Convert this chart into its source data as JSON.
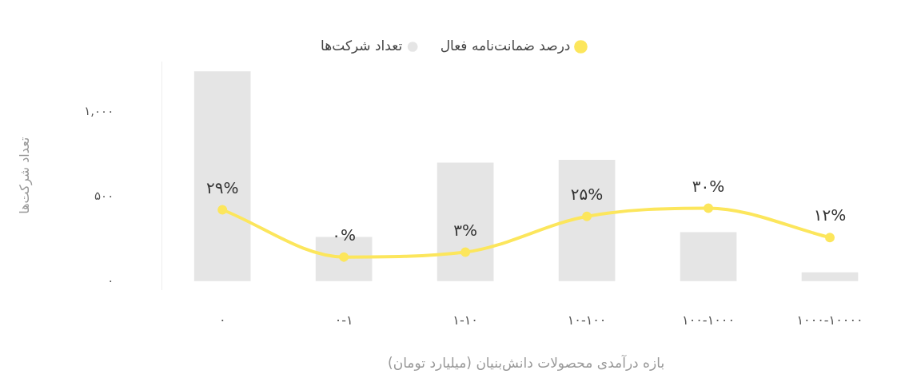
{
  "chart_data": {
    "type": "bar",
    "categories": [
      "۰",
      "۰-۱",
      "۱-۱۰",
      "۱۰-۱۰۰",
      "۱۰۰-۱۰۰۰",
      "۱۰۰۰-۱۰۰۰۰"
    ],
    "series": [
      {
        "name": "تعداد شرکت‌ها",
        "color": "#e5e5e5",
        "values": [
          1242,
          262,
          702,
          718,
          290,
          52
        ]
      },
      {
        "name": "درصد ضمانت‌نامه فعال",
        "type": "line",
        "axis": "y2",
        "color": "#fce65c",
        "values": [
          29,
          0,
          3,
          25,
          30,
          12
        ],
        "value_labels": [
          "۲۹%",
          "۰%",
          "۳%",
          "۲۵%",
          "۳۰%",
          "۱۲%"
        ]
      }
    ],
    "xlabel": "بازه درآمدی محصولات دانش‌بنیان (میلیارد تومان)",
    "ylabel": "تعداد شرکت‌ها",
    "ylim": [
      -50,
      1300
    ],
    "yticks": [
      {
        "value": 0,
        "label": "۰"
      },
      {
        "value": 500,
        "label": "۵۰۰"
      },
      {
        "value": 1000,
        "label": "۱,۰۰۰"
      }
    ],
    "legend": "top",
    "marker": "circle",
    "grid": false
  }
}
